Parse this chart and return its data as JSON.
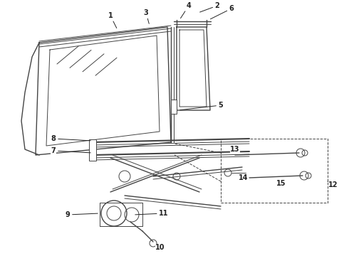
{
  "bg_color": "#ffffff",
  "line_color": "#444444",
  "dark_color": "#222222",
  "figsize": [
    4.9,
    3.6
  ],
  "dpi": 100
}
